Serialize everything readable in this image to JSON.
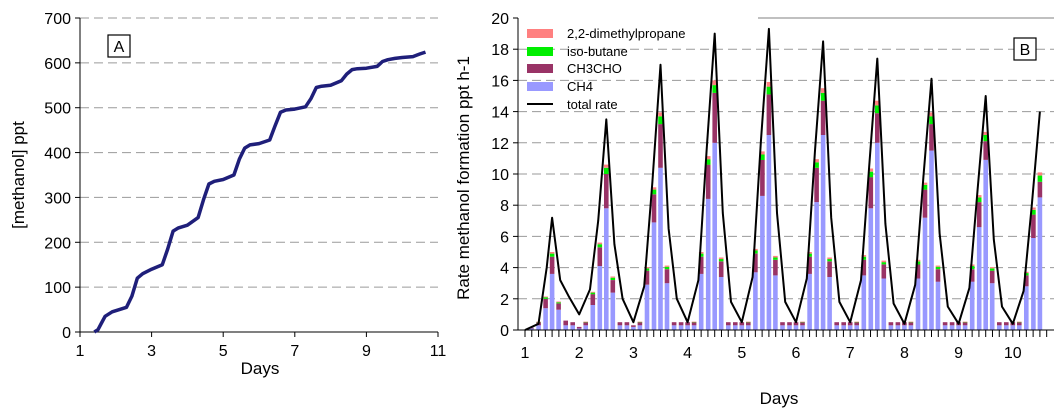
{
  "chart_data": [
    {
      "type": "line",
      "panel_label": "A",
      "xlabel": "Days",
      "ylabel": "[methanol] ppt",
      "xlim": [
        1,
        11
      ],
      "ylim": [
        0,
        700
      ],
      "x_ticks": [
        1,
        3,
        5,
        7,
        9,
        11
      ],
      "y_ticks": [
        0,
        100,
        200,
        300,
        400,
        500,
        600,
        700
      ],
      "grid": "horizontal dashed",
      "series": [
        {
          "color": "#1f1f7a",
          "x": [
            1.4,
            1.5,
            1.6,
            1.7,
            1.9,
            2.1,
            2.3,
            2.45,
            2.6,
            2.75,
            3.0,
            3.3,
            3.45,
            3.6,
            3.75,
            4.0,
            4.3,
            4.45,
            4.6,
            4.75,
            5.0,
            5.3,
            5.45,
            5.6,
            5.75,
            6.0,
            6.3,
            6.45,
            6.6,
            6.75,
            7.0,
            7.3,
            7.45,
            7.6,
            7.75,
            8.0,
            8.3,
            8.45,
            8.6,
            8.75,
            9.0,
            9.3,
            9.45,
            9.6,
            9.8,
            10.0,
            10.3,
            10.5,
            10.65
          ],
          "y": [
            0,
            5,
            20,
            35,
            45,
            50,
            55,
            80,
            120,
            130,
            140,
            150,
            185,
            225,
            232,
            238,
            255,
            295,
            330,
            336,
            340,
            350,
            385,
            410,
            417,
            420,
            428,
            460,
            490,
            495,
            497,
            502,
            520,
            545,
            548,
            550,
            560,
            575,
            585,
            587,
            588,
            592,
            603,
            607,
            610,
            612,
            614,
            620,
            624
          ]
        }
      ]
    },
    {
      "type": "bar",
      "panel_label": "B",
      "stacked": true,
      "xlabel": "Days",
      "ylabel": "Rate methanol formation ppt h-1",
      "xlim": [
        1,
        10.6
      ],
      "ylim": [
        0,
        20
      ],
      "x_ticks": [
        1,
        2,
        3,
        4,
        5,
        6,
        7,
        8,
        9,
        10
      ],
      "y_ticks": [
        0,
        2,
        4,
        6,
        8,
        10,
        12,
        14,
        16,
        18,
        20
      ],
      "grid": "horizontal dashed",
      "legend_position": "top-left",
      "legend": [
        "2,2-dimethylpropane",
        "iso-butane",
        "CH3CHO",
        "CH4",
        "total rate"
      ],
      "colors": {
        "dimethylpropane": "#ff8080",
        "isobutane": "#00ee00",
        "ch3cho": "#993366",
        "ch4": "#9999ff",
        "total": "#000000"
      },
      "bars_x": [
        1.12,
        1.25,
        1.38,
        1.5,
        1.62,
        1.75,
        1.88,
        2.0,
        2.12,
        2.25,
        2.38,
        2.5,
        2.62,
        2.75,
        2.88,
        3.0,
        3.12,
        3.25,
        3.38,
        3.5,
        3.62,
        3.75,
        3.88,
        4.0,
        4.12,
        4.25,
        4.38,
        4.5,
        4.62,
        4.75,
        4.88,
        5.0,
        5.12,
        5.25,
        5.38,
        5.5,
        5.62,
        5.75,
        5.88,
        6.0,
        6.12,
        6.25,
        6.38,
        6.5,
        6.62,
        6.75,
        6.88,
        7.0,
        7.12,
        7.25,
        7.38,
        7.5,
        7.62,
        7.75,
        7.88,
        8.0,
        8.12,
        8.25,
        8.38,
        8.5,
        8.62,
        8.75,
        8.88,
        9.0,
        9.12,
        9.25,
        9.38,
        9.5,
        9.62,
        9.75,
        9.88,
        10.0,
        10.12,
        10.25,
        10.38,
        10.5
      ],
      "ch4": [
        0.1,
        0.3,
        1.4,
        3.6,
        1.3,
        0.3,
        0.3,
        0.1,
        0.3,
        1.6,
        4.1,
        7.8,
        2.4,
        0.3,
        0.3,
        0.2,
        0.3,
        2.9,
        6.9,
        10.4,
        3.0,
        0.3,
        0.3,
        0.3,
        0.3,
        3.6,
        8.4,
        12.0,
        3.4,
        0.3,
        0.3,
        0.3,
        0.3,
        3.7,
        8.6,
        12.5,
        3.5,
        0.3,
        0.3,
        0.3,
        0.3,
        3.6,
        8.2,
        12.5,
        3.4,
        0.3,
        0.3,
        0.3,
        0.3,
        3.5,
        7.8,
        12.0,
        3.3,
        0.3,
        0.3,
        0.3,
        0.3,
        3.3,
        7.2,
        11.5,
        3.1,
        0.3,
        0.3,
        0.3,
        0.3,
        3.1,
        6.6,
        10.9,
        3.0,
        0.3,
        0.3,
        0.3,
        0.3,
        2.8,
        5.9,
        8.5
      ],
      "ch3cho": [
        0.05,
        0.2,
        0.6,
        1.1,
        0.4,
        0.3,
        0.2,
        0.1,
        0.2,
        0.7,
        1.2,
        2.2,
        0.8,
        0.2,
        0.2,
        0.1,
        0.2,
        0.9,
        1.8,
        2.8,
        0.9,
        0.2,
        0.2,
        0.2,
        0.2,
        1.1,
        2.2,
        3.2,
        1.0,
        0.2,
        0.2,
        0.2,
        0.2,
        1.2,
        2.3,
        2.6,
        1.0,
        0.2,
        0.2,
        0.2,
        0.2,
        1.1,
        2.2,
        2.2,
        1.0,
        0.2,
        0.2,
        0.2,
        0.2,
        1.0,
        2.0,
        1.9,
        0.9,
        0.2,
        0.2,
        0.2,
        0.2,
        0.9,
        1.8,
        1.7,
        0.8,
        0.2,
        0.2,
        0.2,
        0.2,
        0.8,
        1.6,
        1.2,
        0.8,
        0.2,
        0.2,
        0.2,
        0.2,
        0.7,
        1.5,
        1.0
      ],
      "isobutane": [
        0,
        0.02,
        0.1,
        0.2,
        0.08,
        0,
        0,
        0,
        0.02,
        0.1,
        0.2,
        0.4,
        0.15,
        0,
        0,
        0,
        0.02,
        0.15,
        0.3,
        0.5,
        0.15,
        0,
        0,
        0,
        0.02,
        0.2,
        0.35,
        0.5,
        0.15,
        0,
        0,
        0,
        0.02,
        0.2,
        0.35,
        0.5,
        0.15,
        0,
        0,
        0,
        0.02,
        0.2,
        0.35,
        0.5,
        0.15,
        0,
        0,
        0,
        0.02,
        0.2,
        0.35,
        0.5,
        0.15,
        0,
        0,
        0,
        0.02,
        0.2,
        0.3,
        0.5,
        0.15,
        0,
        0,
        0,
        0.02,
        0.2,
        0.3,
        0.4,
        0.15,
        0,
        0,
        0,
        0.02,
        0.15,
        0.3,
        0.4
      ],
      "dimethylpropane": [
        0,
        0.01,
        0.05,
        0.1,
        0.05,
        0,
        0,
        0,
        0.01,
        0.05,
        0.1,
        0.2,
        0.08,
        0,
        0,
        0,
        0.01,
        0.08,
        0.15,
        0.25,
        0.08,
        0,
        0,
        0,
        0.01,
        0.1,
        0.2,
        0.3,
        0.1,
        0,
        0,
        0,
        0.01,
        0.1,
        0.2,
        0.3,
        0.1,
        0,
        0,
        0,
        0.01,
        0.1,
        0.2,
        0.3,
        0.1,
        0,
        0,
        0,
        0.01,
        0.1,
        0.2,
        0.3,
        0.1,
        0,
        0,
        0,
        0.01,
        0.1,
        0.15,
        0.25,
        0.08,
        0,
        0,
        0,
        0.01,
        0.1,
        0.15,
        0.2,
        0.08,
        0,
        0,
        0,
        0.01,
        0.08,
        0.15,
        0.2
      ],
      "total_rate": {
        "x": [
          1.0,
          1.25,
          1.4,
          1.5,
          1.65,
          1.8,
          2.0,
          2.2,
          2.35,
          2.5,
          2.65,
          2.8,
          3.0,
          3.2,
          3.35,
          3.5,
          3.65,
          3.8,
          4.0,
          4.2,
          4.35,
          4.5,
          4.65,
          4.8,
          5.0,
          5.2,
          5.35,
          5.5,
          5.65,
          5.8,
          6.0,
          6.2,
          6.35,
          6.5,
          6.65,
          6.8,
          7.0,
          7.2,
          7.35,
          7.5,
          7.65,
          7.8,
          8.0,
          8.2,
          8.35,
          8.5,
          8.65,
          8.8,
          9.0,
          9.2,
          9.35,
          9.5,
          9.65,
          9.8,
          10.0,
          10.2,
          10.35,
          10.5
        ],
        "y": [
          0,
          0.4,
          4.0,
          7.2,
          3.2,
          2.2,
          1.0,
          2.6,
          7.0,
          13.5,
          5.5,
          2.0,
          0.5,
          2.8,
          9.5,
          17.0,
          6.5,
          2.0,
          0.5,
          3.2,
          11.5,
          19.0,
          7.5,
          1.8,
          0.5,
          3.4,
          12.0,
          19.3,
          7.5,
          1.8,
          0.5,
          3.3,
          11.5,
          18.5,
          7.2,
          1.8,
          0.5,
          3.2,
          10.5,
          17.4,
          6.8,
          1.7,
          0.4,
          2.9,
          9.8,
          16.1,
          6.2,
          1.5,
          0.4,
          2.7,
          9.0,
          15.0,
          5.8,
          1.5,
          0.4,
          2.5,
          8.0,
          14.0
        ]
      }
    }
  ]
}
